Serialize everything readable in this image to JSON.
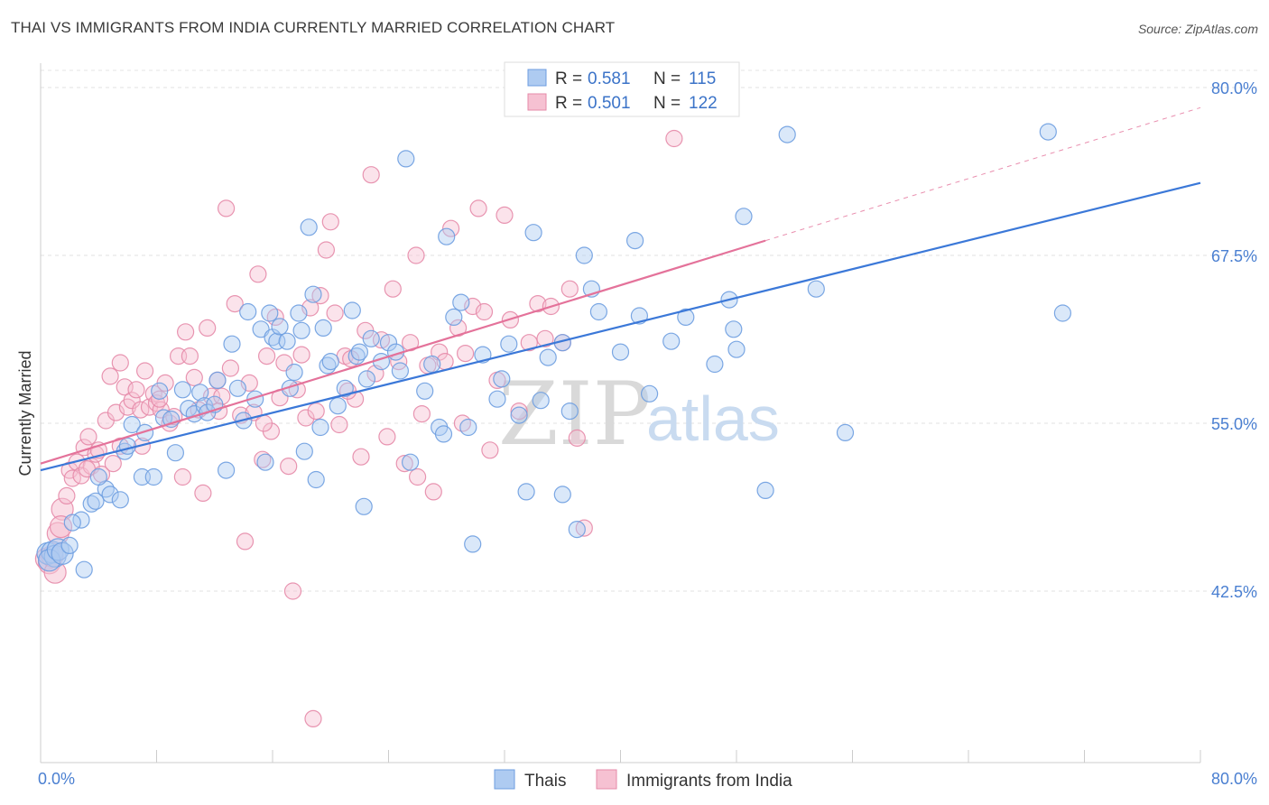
{
  "title": "THAI VS IMMIGRANTS FROM INDIA CURRENTLY MARRIED CORRELATION CHART",
  "source": "Source: ZipAtlas.com",
  "watermark": {
    "zip": "ZIP",
    "atlas": "atlas"
  },
  "legend": {
    "r_label": "R =",
    "n_label": "N =",
    "rows": [
      {
        "r": "0.581",
        "n": "115",
        "fill": "#aecbf1",
        "stroke": "#6d9de0"
      },
      {
        "r": "0.501",
        "n": "122",
        "fill": "#f6c1d2",
        "stroke": "#e58aa8"
      }
    ]
  },
  "bottom_legend": [
    {
      "label": "Thais",
      "fill": "#aecbf1",
      "stroke": "#6d9de0"
    },
    {
      "label": "Immigrants from India",
      "fill": "#f6c1d2",
      "stroke": "#e58aa8"
    }
  ],
  "chart_data": {
    "type": "scatter",
    "title": "THAI VS IMMIGRANTS FROM INDIA CURRENTLY MARRIED CORRELATION CHART",
    "xlabel": "",
    "ylabel": "Currently Married",
    "xlim": [
      0,
      80
    ],
    "ylim": [
      31.5,
      81
    ],
    "x_tick_labels": [
      "0.0%",
      "80.0%"
    ],
    "y_ticks": [
      42.5,
      55.0,
      67.5,
      80.0
    ],
    "y_tick_labels": [
      "42.5%",
      "55.0%",
      "67.5%",
      "80.0%"
    ],
    "grid": "horizontal dashed",
    "legend_position": "top-center",
    "colors": {
      "thais": "#3b78d8",
      "india": "#e4729a"
    },
    "series": [
      {
        "name": "Thais",
        "color": "#6d9de0",
        "trend": {
          "x": [
            0,
            80
          ],
          "y": [
            51.5,
            72.9
          ],
          "dashed_extension": false
        },
        "points": [
          [
            0.5,
            45.3
          ],
          [
            0.8,
            45.4
          ],
          [
            1.0,
            45.1
          ],
          [
            0.6,
            44.8
          ],
          [
            1.2,
            45.6
          ],
          [
            1.5,
            45.3
          ],
          [
            2.0,
            45.9
          ],
          [
            3.0,
            44.1
          ],
          [
            2.8,
            47.8
          ],
          [
            2.2,
            47.6
          ],
          [
            3.5,
            49.0
          ],
          [
            3.8,
            49.2
          ],
          [
            4.5,
            50.1
          ],
          [
            4.0,
            51.0
          ],
          [
            4.8,
            49.7
          ],
          [
            5.5,
            49.3
          ],
          [
            5.8,
            52.9
          ],
          [
            6.0,
            53.3
          ],
          [
            6.3,
            54.9
          ],
          [
            7.0,
            51.0
          ],
          [
            7.2,
            54.3
          ],
          [
            7.8,
            51.0
          ],
          [
            8.2,
            57.4
          ],
          [
            8.5,
            55.4
          ],
          [
            9.0,
            55.3
          ],
          [
            9.3,
            52.8
          ],
          [
            9.8,
            57.5
          ],
          [
            10.2,
            56.1
          ],
          [
            10.6,
            55.7
          ],
          [
            11.0,
            57.3
          ],
          [
            11.3,
            56.3
          ],
          [
            11.5,
            55.8
          ],
          [
            12.0,
            56.4
          ],
          [
            12.2,
            58.2
          ],
          [
            12.8,
            51.5
          ],
          [
            13.2,
            60.9
          ],
          [
            13.6,
            57.6
          ],
          [
            14.0,
            55.2
          ],
          [
            14.3,
            63.3
          ],
          [
            14.8,
            56.8
          ],
          [
            15.2,
            62.0
          ],
          [
            15.5,
            52.1
          ],
          [
            15.8,
            63.2
          ],
          [
            16.0,
            61.4
          ],
          [
            16.3,
            61.1
          ],
          [
            16.5,
            62.2
          ],
          [
            17.0,
            61.1
          ],
          [
            17.2,
            57.6
          ],
          [
            17.5,
            58.8
          ],
          [
            17.8,
            63.2
          ],
          [
            18.0,
            61.9
          ],
          [
            18.2,
            52.9
          ],
          [
            18.5,
            69.6
          ],
          [
            18.8,
            64.6
          ],
          [
            19.0,
            50.8
          ],
          [
            19.3,
            54.7
          ],
          [
            19.5,
            62.1
          ],
          [
            19.8,
            59.3
          ],
          [
            20.0,
            59.6
          ],
          [
            20.5,
            56.3
          ],
          [
            21.0,
            57.6
          ],
          [
            21.5,
            63.4
          ],
          [
            21.8,
            60.0
          ],
          [
            22.0,
            60.3
          ],
          [
            22.5,
            58.3
          ],
          [
            22.8,
            61.3
          ],
          [
            23.5,
            59.6
          ],
          [
            24.0,
            61.0
          ],
          [
            24.5,
            60.3
          ],
          [
            24.8,
            58.9
          ],
          [
            25.2,
            74.7
          ],
          [
            25.5,
            52.1
          ],
          [
            26.5,
            57.4
          ],
          [
            27.0,
            59.4
          ],
          [
            27.5,
            54.7
          ],
          [
            28.0,
            68.9
          ],
          [
            28.5,
            62.9
          ],
          [
            29.0,
            64.0
          ],
          [
            29.5,
            54.7
          ],
          [
            29.8,
            46.0
          ],
          [
            30.5,
            60.1
          ],
          [
            31.5,
            56.8
          ],
          [
            32.3,
            60.9
          ],
          [
            33.0,
            55.6
          ],
          [
            33.5,
            49.9
          ],
          [
            34.0,
            69.2
          ],
          [
            34.5,
            56.7
          ],
          [
            35.0,
            59.9
          ],
          [
            36.0,
            49.7
          ],
          [
            36.5,
            55.9
          ],
          [
            37.0,
            47.1
          ],
          [
            37.5,
            67.5
          ],
          [
            38.0,
            65.0
          ],
          [
            38.5,
            63.3
          ],
          [
            40.0,
            60.3
          ],
          [
            41.0,
            68.6
          ],
          [
            41.3,
            63.0
          ],
          [
            43.5,
            61.1
          ],
          [
            44.5,
            62.9
          ],
          [
            46.5,
            59.4
          ],
          [
            47.5,
            64.2
          ],
          [
            47.8,
            62.0
          ],
          [
            48.0,
            60.5
          ],
          [
            48.5,
            70.4
          ],
          [
            50.0,
            50.0
          ],
          [
            51.5,
            76.5
          ],
          [
            53.5,
            65.0
          ],
          [
            55.5,
            54.3
          ],
          [
            69.5,
            76.7
          ],
          [
            70.5,
            63.2
          ],
          [
            31.8,
            58.3
          ],
          [
            27.8,
            54.2
          ],
          [
            22.3,
            48.8
          ],
          [
            42.0,
            57.2
          ],
          [
            36.0,
            61.0
          ]
        ]
      },
      {
        "name": "Immigrants from India",
        "color": "#e58aa8",
        "trend": {
          "x": [
            0,
            50
          ],
          "y": [
            52.0,
            68.6
          ],
          "dashed_extension": true,
          "dashed_to": {
            "x": 80,
            "y": 78.5
          }
        },
        "points": [
          [
            0.4,
            44.9
          ],
          [
            0.6,
            44.6
          ],
          [
            0.8,
            45.1
          ],
          [
            1.0,
            43.9
          ],
          [
            1.2,
            46.8
          ],
          [
            1.5,
            48.6
          ],
          [
            1.8,
            49.6
          ],
          [
            2.0,
            51.5
          ],
          [
            2.2,
            50.9
          ],
          [
            2.5,
            52.1
          ],
          [
            2.8,
            51.1
          ],
          [
            3.0,
            53.2
          ],
          [
            3.3,
            54.0
          ],
          [
            3.5,
            51.8
          ],
          [
            3.8,
            52.7
          ],
          [
            4.0,
            53.0
          ],
          [
            4.2,
            51.2
          ],
          [
            4.5,
            55.2
          ],
          [
            4.8,
            58.5
          ],
          [
            5.0,
            52.0
          ],
          [
            5.2,
            55.8
          ],
          [
            5.5,
            53.3
          ],
          [
            5.8,
            57.7
          ],
          [
            6.0,
            56.2
          ],
          [
            6.3,
            56.7
          ],
          [
            6.6,
            57.5
          ],
          [
            6.9,
            56.0
          ],
          [
            7.2,
            58.9
          ],
          [
            7.5,
            56.2
          ],
          [
            7.8,
            57.2
          ],
          [
            8.0,
            56.5
          ],
          [
            8.3,
            56.0
          ],
          [
            8.6,
            58.0
          ],
          [
            8.9,
            55.0
          ],
          [
            9.2,
            55.5
          ],
          [
            9.5,
            60.0
          ],
          [
            9.8,
            51.0
          ],
          [
            10.0,
            61.8
          ],
          [
            10.3,
            60.0
          ],
          [
            10.6,
            58.4
          ],
          [
            10.9,
            56.0
          ],
          [
            11.2,
            49.8
          ],
          [
            11.5,
            62.1
          ],
          [
            11.8,
            57.0
          ],
          [
            12.2,
            58.2
          ],
          [
            12.5,
            57.0
          ],
          [
            12.8,
            71.0
          ],
          [
            13.1,
            59.1
          ],
          [
            13.4,
            63.9
          ],
          [
            13.8,
            55.6
          ],
          [
            14.1,
            46.2
          ],
          [
            14.4,
            58.0
          ],
          [
            14.7,
            55.8
          ],
          [
            15.0,
            66.1
          ],
          [
            15.3,
            52.3
          ],
          [
            15.6,
            60.0
          ],
          [
            15.9,
            54.4
          ],
          [
            16.2,
            62.9
          ],
          [
            16.5,
            56.9
          ],
          [
            16.8,
            59.5
          ],
          [
            17.1,
            51.8
          ],
          [
            17.4,
            42.5
          ],
          [
            17.7,
            57.5
          ],
          [
            18.0,
            60.1
          ],
          [
            18.3,
            55.4
          ],
          [
            18.6,
            63.6
          ],
          [
            19.0,
            55.9
          ],
          [
            19.3,
            64.5
          ],
          [
            19.7,
            67.9
          ],
          [
            20.0,
            70.0
          ],
          [
            20.3,
            63.2
          ],
          [
            20.6,
            54.9
          ],
          [
            21.0,
            60.0
          ],
          [
            21.4,
            59.8
          ],
          [
            21.7,
            56.8
          ],
          [
            22.1,
            52.5
          ],
          [
            22.4,
            61.9
          ],
          [
            22.8,
            73.5
          ],
          [
            23.1,
            58.7
          ],
          [
            23.5,
            61.2
          ],
          [
            23.9,
            54.0
          ],
          [
            24.3,
            65.0
          ],
          [
            24.7,
            59.6
          ],
          [
            25.1,
            52.0
          ],
          [
            25.5,
            61.0
          ],
          [
            25.9,
            67.5
          ],
          [
            26.3,
            55.7
          ],
          [
            26.7,
            59.3
          ],
          [
            27.1,
            49.9
          ],
          [
            27.5,
            60.3
          ],
          [
            27.9,
            59.6
          ],
          [
            28.3,
            69.5
          ],
          [
            28.8,
            62.1
          ],
          [
            29.3,
            60.2
          ],
          [
            29.8,
            63.7
          ],
          [
            30.2,
            71.0
          ],
          [
            30.6,
            63.3
          ],
          [
            31.0,
            53.0
          ],
          [
            31.5,
            58.2
          ],
          [
            32.0,
            70.5
          ],
          [
            32.4,
            62.7
          ],
          [
            33.0,
            55.9
          ],
          [
            33.7,
            61.0
          ],
          [
            34.3,
            63.9
          ],
          [
            34.8,
            61.3
          ],
          [
            35.2,
            63.7
          ],
          [
            36.0,
            61.0
          ],
          [
            36.5,
            65.0
          ],
          [
            37.0,
            53.9
          ],
          [
            37.5,
            47.2
          ],
          [
            43.7,
            76.2
          ],
          [
            18.8,
            33.0
          ],
          [
            8.2,
            56.8
          ],
          [
            12.3,
            55.9
          ],
          [
            5.5,
            59.5
          ],
          [
            15.4,
            55.0
          ],
          [
            21.2,
            57.4
          ],
          [
            26.0,
            51.0
          ],
          [
            29.1,
            55.0
          ],
          [
            1.4,
            47.3
          ],
          [
            3.2,
            51.6
          ],
          [
            7.0,
            53.3
          ]
        ]
      }
    ]
  }
}
